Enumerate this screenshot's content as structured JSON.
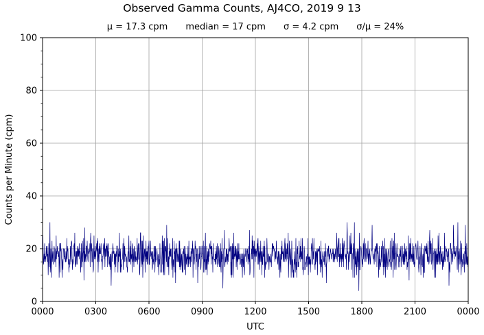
{
  "chart_data": {
    "type": "line",
    "title": "Observed Gamma Counts, AJ4CO, 2019 9 13",
    "stats": {
      "mean": "μ = 17.3 cpm",
      "median": "median = 17 cpm",
      "sigma": "σ = 4.2 cpm",
      "ratio": "σ/μ = 24%"
    },
    "xlabel": "UTC",
    "ylabel": "Counts per Minute (cpm)",
    "ylim": [
      0,
      100
    ],
    "xlim_minutes": [
      0,
      1440
    ],
    "yticks": [
      0,
      20,
      40,
      60,
      80,
      100
    ],
    "xticks": [
      {
        "minute": 0,
        "label": "0000"
      },
      {
        "minute": 180,
        "label": "0300"
      },
      {
        "minute": 360,
        "label": "0600"
      },
      {
        "minute": 540,
        "label": "0900"
      },
      {
        "minute": 720,
        "label": "1200"
      },
      {
        "minute": 900,
        "label": "1500"
      },
      {
        "minute": 1080,
        "label": "1800"
      },
      {
        "minute": 1260,
        "label": "2100"
      },
      {
        "minute": 1440,
        "label": "0000"
      }
    ],
    "grid": true,
    "series": [
      {
        "color": "#000080",
        "sampling": "1 value per minute",
        "summary": {
          "mean": 17.3,
          "median": 17,
          "std": 4.2,
          "min": 4,
          "max": 33
        },
        "notable_points": [
          {
            "minute": 25,
            "value": 30
          },
          {
            "minute": 140,
            "value": 28
          },
          {
            "minute": 140,
            "value": 8
          },
          {
            "minute": 143,
            "value": 28
          },
          {
            "minute": 232,
            "value": 33
          },
          {
            "minute": 232,
            "value": 6
          },
          {
            "minute": 260,
            "value": 26
          },
          {
            "minute": 420,
            "value": 29
          },
          {
            "minute": 450,
            "value": 7
          },
          {
            "minute": 525,
            "value": 7
          },
          {
            "minute": 610,
            "value": 5
          },
          {
            "minute": 615,
            "value": 27
          },
          {
            "minute": 700,
            "value": 27
          },
          {
            "minute": 960,
            "value": 7
          },
          {
            "minute": 1030,
            "value": 30
          },
          {
            "minute": 1055,
            "value": 30
          },
          {
            "minute": 1070,
            "value": 4
          },
          {
            "minute": 1115,
            "value": 29
          },
          {
            "minute": 1240,
            "value": 8
          },
          {
            "minute": 1310,
            "value": 27
          },
          {
            "minute": 1360,
            "value": 26
          },
          {
            "minute": 1375,
            "value": 6
          },
          {
            "minute": 1390,
            "value": 29
          },
          {
            "minute": 1405,
            "value": 30
          },
          {
            "minute": 1430,
            "value": 29
          }
        ]
      }
    ]
  }
}
